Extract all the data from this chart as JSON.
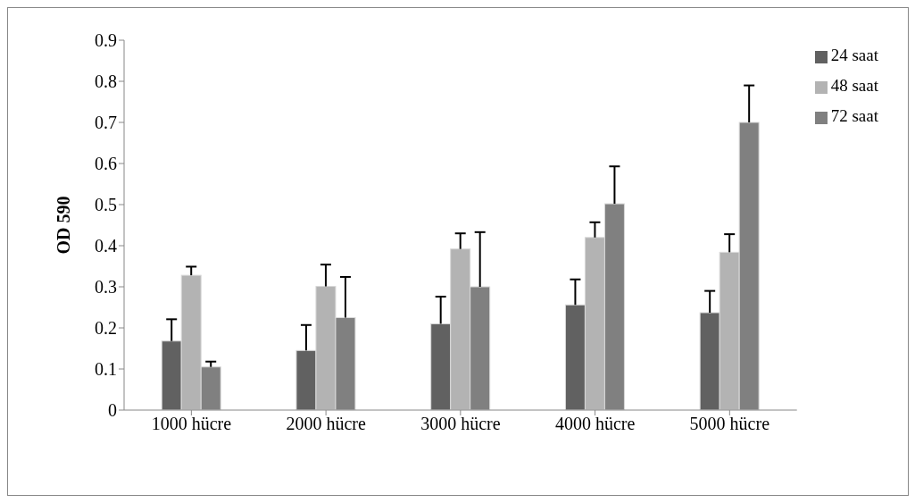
{
  "chart_data": {
    "type": "bar",
    "ylabel": "OD 590",
    "categories": [
      "1000 hücre",
      "2000 hücre",
      "3000 hücre",
      "4000 hücre",
      "5000 hücre"
    ],
    "series": [
      {
        "name": "24 saat",
        "color": "#616161",
        "values": [
          0.168,
          0.145,
          0.21,
          0.256,
          0.237
        ],
        "errors": [
          [
            0.168,
            0.221
          ],
          [
            0.145,
            0.207
          ],
          [
            0.21,
            0.276
          ],
          [
            0.256,
            0.318
          ],
          [
            0.237,
            0.29
          ]
        ]
      },
      {
        "name": "48 saat",
        "color": "#b3b3b3",
        "values": [
          0.328,
          0.301,
          0.392,
          0.42,
          0.384
        ],
        "errors": [
          [
            0.328,
            0.349
          ],
          [
            0.301,
            0.354
          ],
          [
            0.392,
            0.43
          ],
          [
            0.42,
            0.457
          ],
          [
            0.384,
            0.428
          ]
        ]
      },
      {
        "name": "72 saat",
        "color": "#808080",
        "values": [
          0.105,
          0.225,
          0.3,
          0.502,
          0.7
        ],
        "errors": [
          [
            0.105,
            0.118
          ],
          [
            0.225,
            0.324
          ],
          [
            0.3,
            0.433
          ],
          [
            0.502,
            0.593
          ],
          [
            0.7,
            0.79
          ]
        ]
      }
    ],
    "ylim": [
      0,
      0.9
    ],
    "yticks": [
      0,
      0.1,
      0.2,
      0.3,
      0.4,
      0.5,
      0.6,
      0.7,
      0.8,
      0.9
    ],
    "grid": false,
    "legend": "right"
  }
}
